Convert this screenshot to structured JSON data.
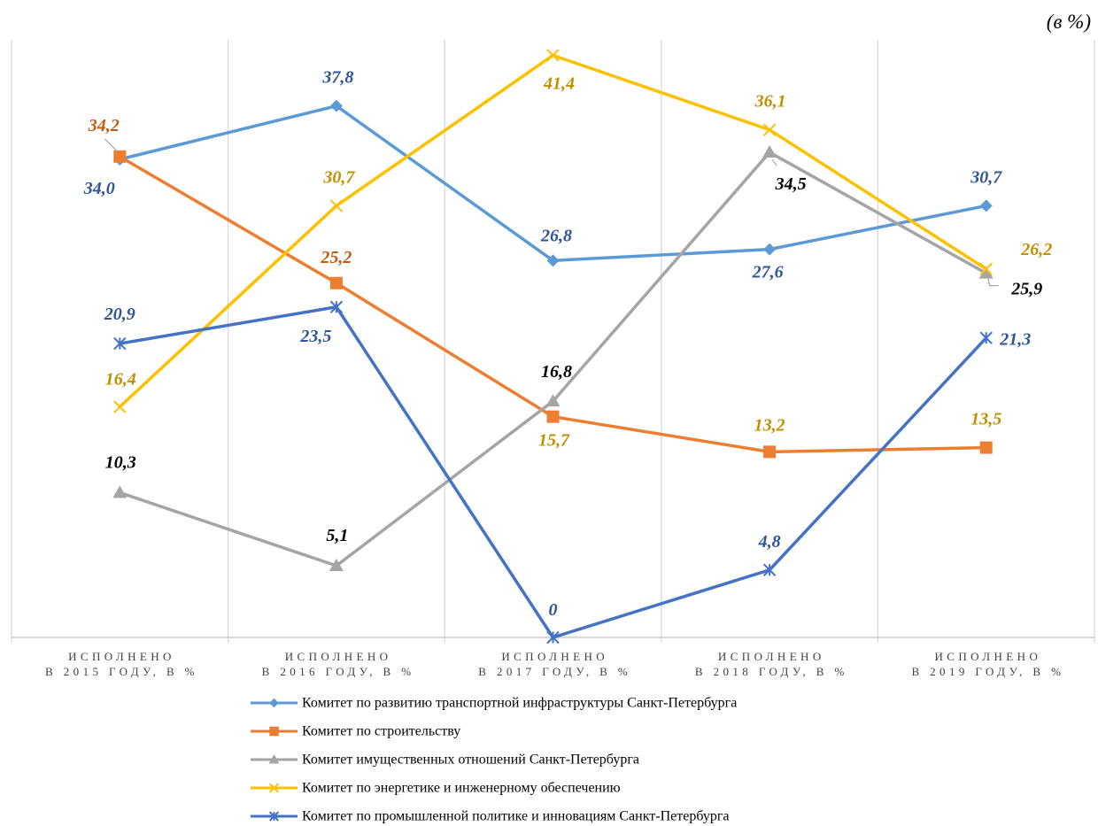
{
  "unit_note": "(в %)",
  "chart_data": {
    "type": "line",
    "categories": [
      "ИСПОЛНЕНО\nВ 2015 ГОДУ, В %",
      "ИСПОЛНЕНО\nВ 2016 ГОДУ, В %",
      "ИСПОЛНЕНО\nВ 2017 ГОДУ, В %",
      "ИСПОЛНЕНО\nВ 2018 ГОДУ, В %",
      "ИСПОЛНЕНО\nВ 2019 ГОДУ, В %"
    ],
    "ylim": [
      0,
      42.5
    ],
    "grid": {
      "vertical": true,
      "horizontal": false
    },
    "legend_position": "bottom",
    "series": [
      {
        "name": "Комитет по развитию транспортной инфраструктуры Санкт-Петербурга",
        "values": [
          34.0,
          37.8,
          26.8,
          27.6,
          30.7
        ],
        "labels": [
          "34,0",
          "37,8",
          "26,8",
          "27,6",
          "30,7"
        ],
        "color": "#5B9BD5",
        "marker": "diamond",
        "label_color": "#2F5597"
      },
      {
        "name": "Комитет по строительству",
        "values": [
          34.2,
          25.2,
          15.7,
          13.2,
          13.5
        ],
        "labels": [
          "34,2",
          "25,2",
          "15,7",
          "13,2",
          "13,5"
        ],
        "color": "#ED7D31",
        "marker": "square",
        "label_colors": [
          "#C55A11",
          "#C55A11",
          "#BF8F00",
          "#BF8F00",
          "#BF8F00"
        ]
      },
      {
        "name": "Комитет имущественных отношений Санкт-Петербурга",
        "values": [
          10.3,
          5.1,
          16.8,
          34.5,
          25.9
        ],
        "labels": [
          "10,3",
          "5,1",
          "16,8",
          "34,5",
          "25,9"
        ],
        "color": "#A5A5A5",
        "marker": "triangle",
        "label_color": "#000000"
      },
      {
        "name": "Комитет по энергетике и инженерному обеспечению",
        "values": [
          16.4,
          30.7,
          41.4,
          36.1,
          26.2
        ],
        "labels": [
          "16,4",
          "30,7",
          "41,4",
          "36,1",
          "26,2"
        ],
        "color": "#FFC000",
        "marker": "x",
        "label_color": "#BF9000"
      },
      {
        "name": "Комитет по промышленной политике и инновациям Санкт-Петербурга",
        "values": [
          20.9,
          23.5,
          0,
          4.8,
          21.3
        ],
        "labels": [
          "20,9",
          "23,5",
          "0",
          "4,8",
          "21,3"
        ],
        "color": "#4472C4",
        "marker": "star",
        "label_color": "#2F5597"
      }
    ]
  }
}
